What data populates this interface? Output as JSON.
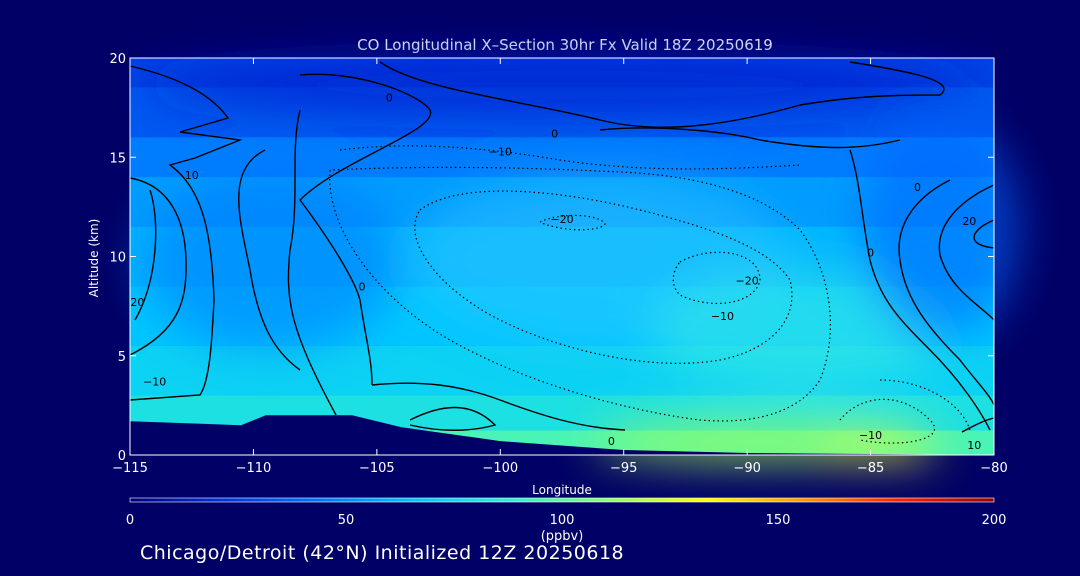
{
  "chart_data": {
    "type": "heatmap",
    "title": "CO Longitudinal X–Section 30hr  Fx Valid 18Z 20250619",
    "xlabel": "Longitude",
    "ylabel": "Altitude (km)",
    "xlim": [
      -115,
      -80
    ],
    "ylim": [
      0,
      20
    ],
    "x_ticks": [
      -115,
      -110,
      -105,
      -100,
      -95,
      -90,
      -85,
      -80
    ],
    "x_tick_labels": [
      "−115",
      "−110",
      "−105",
      "−100",
      "−95",
      "−90",
      "−85",
      "−80"
    ],
    "y_ticks": [
      0,
      5,
      10,
      15,
      20
    ],
    "y_tick_labels": [
      "0",
      "5",
      "10",
      "15",
      "20"
    ],
    "colorbar": {
      "min": 0,
      "max": 200,
      "ticks": [
        0,
        50,
        100,
        150,
        200
      ],
      "tick_labels": [
        "0",
        "50",
        "100",
        "150",
        "200"
      ],
      "units": "(ppbv)",
      "colors": [
        "#00007a",
        "#0033dd",
        "#0077ff",
        "#00c8ff",
        "#30f0d0",
        "#90ff70",
        "#ffff00",
        "#ff9900",
        "#ff2200",
        "#990000"
      ]
    },
    "field_profile": [
      {
        "alt": 0.5,
        "value": 95
      },
      {
        "alt": 2,
        "value": 80
      },
      {
        "alt": 4,
        "value": 72
      },
      {
        "alt": 7,
        "value": 66
      },
      {
        "alt": 10,
        "value": 62
      },
      {
        "alt": 13,
        "value": 55
      },
      {
        "alt": 15,
        "value": 46
      },
      {
        "alt": 17,
        "value": 35
      },
      {
        "alt": 20,
        "value": 28
      }
    ],
    "terrain": [
      {
        "lon": -115,
        "alt": 1.7
      },
      {
        "lon": -110.5,
        "alt": 1.5
      },
      {
        "lon": -109.5,
        "alt": 2.0
      },
      {
        "lon": -106,
        "alt": 2.0
      },
      {
        "lon": -104,
        "alt": 1.4
      },
      {
        "lon": -100,
        "alt": 0.7
      },
      {
        "lon": -95,
        "alt": 0.25
      },
      {
        "lon": -90,
        "alt": 0.1
      },
      {
        "lon": -85,
        "alt": 0.05
      },
      {
        "lon": -80,
        "alt": 0.0
      }
    ],
    "contour_labels": [
      {
        "text": "0",
        "lon": -104.5,
        "alt": 18.0
      },
      {
        "text": "0",
        "lon": -97.8,
        "alt": 16.2
      },
      {
        "text": "−10",
        "lon": -100.0,
        "alt": 15.3
      },
      {
        "text": "10",
        "lon": -112.5,
        "alt": 14.1
      },
      {
        "text": "−20",
        "lon": -97.5,
        "alt": 11.9
      },
      {
        "text": "20",
        "lon": -114.7,
        "alt": 7.7
      },
      {
        "text": "0",
        "lon": -105.6,
        "alt": 8.5
      },
      {
        "text": "−20",
        "lon": -90.0,
        "alt": 8.8
      },
      {
        "text": "−10",
        "lon": -91.0,
        "alt": 7.0
      },
      {
        "text": "−10",
        "lon": -114.0,
        "alt": 3.7
      },
      {
        "text": "0",
        "lon": -95.5,
        "alt": 0.7
      },
      {
        "text": "0",
        "lon": -85.0,
        "alt": 10.2
      },
      {
        "text": "0",
        "lon": -83.1,
        "alt": 13.5
      },
      {
        "text": "20",
        "lon": -81.0,
        "alt": 11.8
      },
      {
        "text": "−10",
        "lon": -85.0,
        "alt": 1.0
      },
      {
        "text": "10",
        "lon": -80.8,
        "alt": 0.5
      }
    ]
  },
  "footer": {
    "text": "Chicago/Detroit (42°N) Initialized 12Z 20250618"
  }
}
